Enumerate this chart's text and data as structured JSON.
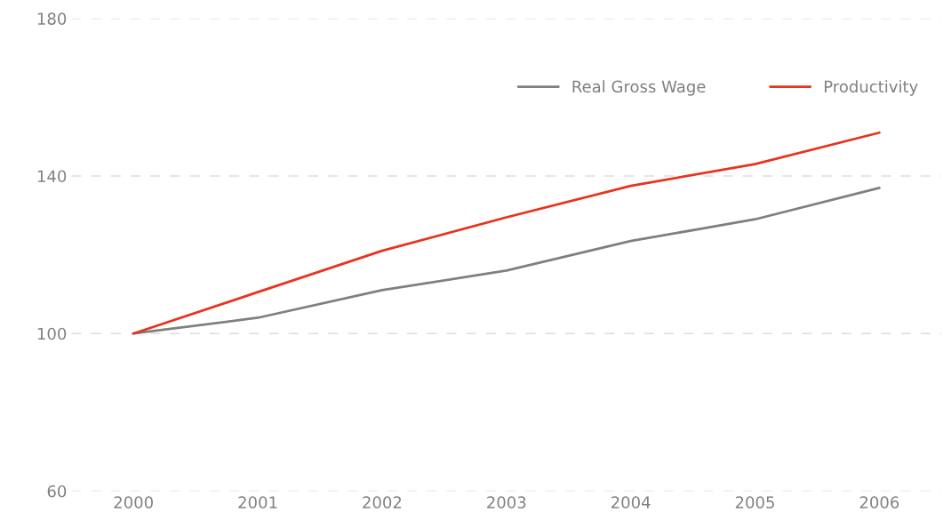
{
  "chart_data": {
    "type": "line",
    "categories": [
      "2000",
      "2001",
      "2002",
      "2003",
      "2004",
      "2005",
      "2006"
    ],
    "series": [
      {
        "name": "Real Gross Wage",
        "color": "#7f7f7f",
        "values": [
          100,
          104,
          111,
          116,
          123.5,
          129,
          137
        ]
      },
      {
        "name": "Productivity",
        "color": "#e8331f",
        "values": [
          100,
          110.5,
          121,
          129.5,
          137.5,
          143,
          151
        ]
      }
    ],
    "ylim": [
      60,
      180
    ],
    "yticks": [
      60,
      100,
      140,
      180
    ],
    "grid": "y",
    "legend": "top right",
    "marker": "none",
    "line_style": "solid"
  }
}
